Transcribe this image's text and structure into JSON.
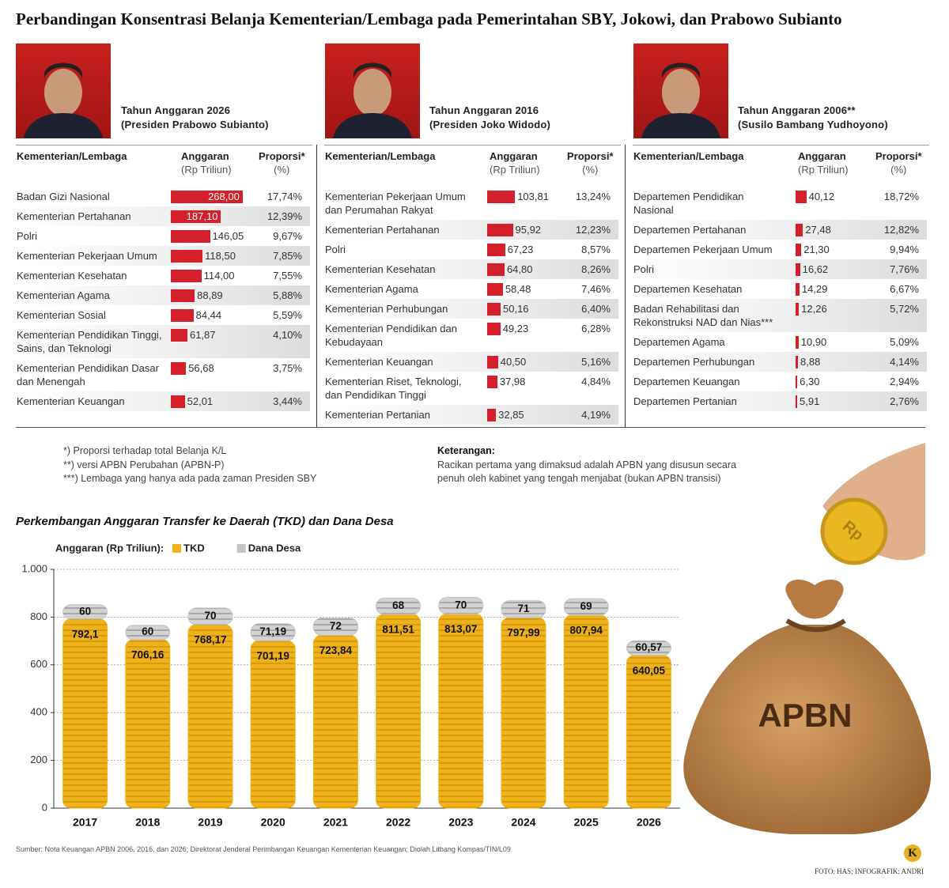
{
  "title": "Perbandingan Konsentrasi Belanja Kementerian/Lembaga pada Pemerintahan SBY, Jokowi, dan Prabowo Subianto",
  "table_headers": {
    "name": "Kementerian/Lembaga",
    "budget": "Anggaran",
    "budget_unit": "(Rp Triliun)",
    "proportion": "Proporsi*",
    "proportion_unit": "(%)"
  },
  "panels": [
    {
      "caption": [
        "Tahun Anggaran 2026",
        "(Presiden Prabowo Subianto)"
      ],
      "rows": [
        {
          "name": [
            "Badan Gizi Nasional"
          ],
          "value": 268.0,
          "value_label": "268,00",
          "proportion": "17,74%"
        },
        {
          "name": [
            "Kementerian Pertahanan"
          ],
          "value": 187.1,
          "value_label": "187,10",
          "proportion": "12,39%"
        },
        {
          "name": [
            "Polri"
          ],
          "value": 146.05,
          "value_label": "146,05",
          "proportion": "9,67%"
        },
        {
          "name": [
            "Kementerian Pekerjaan Umum"
          ],
          "value": 118.5,
          "value_label": "118,50",
          "proportion": "7,85%"
        },
        {
          "name": [
            "Kementerian Kesehatan"
          ],
          "value": 114.0,
          "value_label": "114,00",
          "proportion": "7,55%"
        },
        {
          "name": [
            "Kementerian Agama"
          ],
          "value": 88.89,
          "value_label": "88,89",
          "proportion": "5,88%"
        },
        {
          "name": [
            "Kementerian Sosial"
          ],
          "value": 84.44,
          "value_label": "84,44",
          "proportion": "5,59%"
        },
        {
          "name": [
            "Kementerian Pendidikan Tinggi,",
            "Sains, dan Teknologi"
          ],
          "value": 61.87,
          "value_label": "61,87",
          "proportion": "4,10%"
        },
        {
          "name": [
            "Kementerian Pendidikan Dasar",
            "dan Menengah"
          ],
          "value": 56.68,
          "value_label": "56,68",
          "proportion": "3,75%"
        },
        {
          "name": [
            "Kementerian Keuangan"
          ],
          "value": 52.01,
          "value_label": "52,01",
          "proportion": "3,44%"
        }
      ]
    },
    {
      "caption": [
        "Tahun Anggaran 2016",
        "(Presiden Joko Widodo)"
      ],
      "rows": [
        {
          "name": [
            "Kementerian Pekerjaan Umum",
            "dan Perumahan Rakyat"
          ],
          "value": 103.81,
          "value_label": "103,81",
          "proportion": "13,24%"
        },
        {
          "name": [
            "Kementerian Pertahanan"
          ],
          "value": 95.92,
          "value_label": "95,92",
          "proportion": "12,23%"
        },
        {
          "name": [
            "Polri"
          ],
          "value": 67.23,
          "value_label": "67,23",
          "proportion": "8,57%"
        },
        {
          "name": [
            "Kementerian Kesehatan"
          ],
          "value": 64.8,
          "value_label": "64,80",
          "proportion": "8,26%"
        },
        {
          "name": [
            "Kementerian Agama"
          ],
          "value": 58.48,
          "value_label": "58,48",
          "proportion": "7,46%"
        },
        {
          "name": [
            "Kementerian Perhubungan"
          ],
          "value": 50.16,
          "value_label": "50,16",
          "proportion": "6,40%"
        },
        {
          "name": [
            "Kementerian Pendidikan dan",
            "Kebudayaan"
          ],
          "value": 49.23,
          "value_label": "49,23",
          "proportion": "6,28%"
        },
        {
          "name": [
            "Kementerian Keuangan"
          ],
          "value": 40.5,
          "value_label": "40,50",
          "proportion": "5,16%"
        },
        {
          "name": [
            "Kementerian Riset, Teknologi,",
            "dan Pendidikan Tinggi"
          ],
          "value": 37.98,
          "value_label": "37,98",
          "proportion": "4,84%"
        },
        {
          "name": [
            "Kementerian Pertanian"
          ],
          "value": 32.85,
          "value_label": "32,85",
          "proportion": "4,19%"
        }
      ]
    },
    {
      "caption": [
        "Tahun Anggaran 2006**",
        "(Susilo Bambang Yudhoyono)"
      ],
      "rows": [
        {
          "name": [
            "Departemen Pendidikan",
            "Nasional"
          ],
          "value": 40.12,
          "value_label": "40,12",
          "proportion": "18,72%"
        },
        {
          "name": [
            "Departemen Pertahanan"
          ],
          "value": 27.48,
          "value_label": "27,48",
          "proportion": "12,82%"
        },
        {
          "name": [
            "Departemen Pekerjaan Umum"
          ],
          "value": 21.3,
          "value_label": "21,30",
          "proportion": "9,94%"
        },
        {
          "name": [
            "Polri"
          ],
          "value": 16.62,
          "value_label": "16,62",
          "proportion": "7,76%"
        },
        {
          "name": [
            "Departemen Kesehatan"
          ],
          "value": 14.29,
          "value_label": "14,29",
          "proportion": "6,67%"
        },
        {
          "name": [
            "Badan Rehabilitasi dan",
            "Rekonstruksi NAD dan Nias***"
          ],
          "value": 12.26,
          "value_label": "12,26",
          "proportion": "5,72%"
        },
        {
          "name": [
            "Departemen Agama"
          ],
          "value": 10.9,
          "value_label": "10,90",
          "proportion": "5,09%"
        },
        {
          "name": [
            "Departemen Perhubungan"
          ],
          "value": 8.88,
          "value_label": "8,88",
          "proportion": "4,14%"
        },
        {
          "name": [
            "Departemen Keuangan"
          ],
          "value": 6.3,
          "value_label": "6,30",
          "proportion": "2,94%"
        },
        {
          "name": [
            "Departemen Pertanian"
          ],
          "value": 5.91,
          "value_label": "5,91",
          "proportion": "2,76%"
        }
      ]
    }
  ],
  "footnotes": [
    "*) Proporsi terhadap total Belanja K/L",
    "**) versi APBN Perubahan (APBN-P)",
    "***) Lembaga yang hanya ada pada zaman Presiden SBY"
  ],
  "remarks": {
    "title": "Keterangan:",
    "lines": [
      "Racikan pertama yang dimaksud adalah APBN yang disusun secara",
      "penuh oleh kabinet yang tengah menjabat (bukan APBN transisi)"
    ]
  },
  "chart_data": {
    "type": "bar",
    "stacked": true,
    "title": "Perkembangan Anggaran Transfer ke Daerah (TKD) dan Dana Desa",
    "legend_title": "Anggaran (Rp Triliun):",
    "categories": [
      "2017",
      "2018",
      "2019",
      "2020",
      "2021",
      "2022",
      "2023",
      "2024",
      "2025",
      "2026"
    ],
    "series": [
      {
        "name": "TKD",
        "color": "#f0b21a",
        "values": [
          792.1,
          706.16,
          768.17,
          701.19,
          723.84,
          811.51,
          813.07,
          797.99,
          807.94,
          640.05
        ],
        "value_labels": [
          "792,1",
          "706,16",
          "768,17",
          "701,19",
          "723,84",
          "811,51",
          "813,07",
          "797,99",
          "807,94",
          "640,05"
        ]
      },
      {
        "name": "Dana Desa",
        "color": "#c4c4c4",
        "values": [
          60,
          60,
          70,
          71.19,
          72,
          68,
          70,
          71,
          69,
          60.57
        ],
        "value_labels": [
          "60",
          "60",
          "70",
          "71,19",
          "72",
          "68",
          "70",
          "71",
          "69",
          "60,57"
        ]
      }
    ],
    "ylim": [
      0,
      1000
    ],
    "yticks": [
      0,
      200,
      400,
      600,
      800,
      {
        "value": 1000,
        "label": "1.000"
      }
    ],
    "grid": true
  },
  "illustration": {
    "bag_label": "APBN",
    "coin_label": "Rp"
  },
  "source": "Sumber: Nota Keuangan APBN 2006, 2016, dan 2026; Direktorat Jenderal Perimbangan Keuangan Kementerian Keuangan; Diolah Litbang Kompas/TIN/L09",
  "logo": "K",
  "credit": "FOTO: HAS; INFOGRAFIK: ANDRI"
}
